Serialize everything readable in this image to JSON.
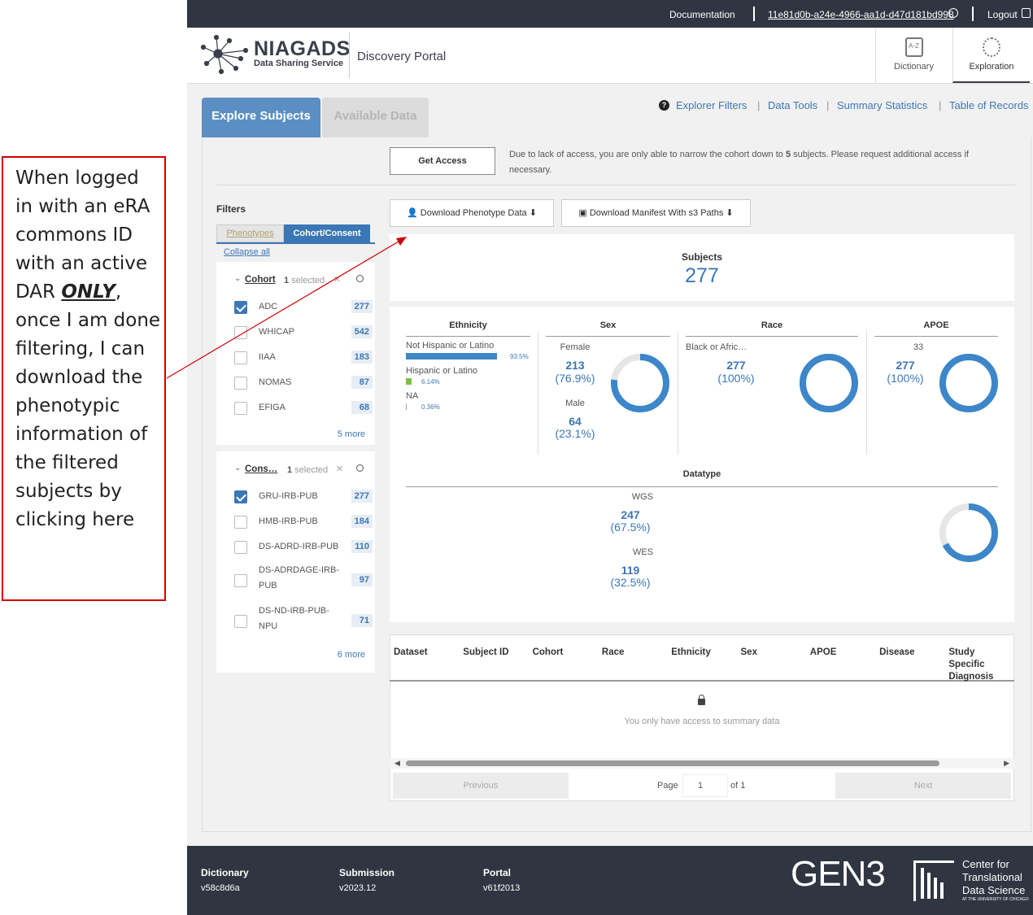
{
  "annotation": {
    "text_parts": [
      "When logged in with an eRA commons ID with an active DAR ",
      "ONLY",
      ", once I am done filtering, I can download the phenotypic information of the filtered subjects by clicking here"
    ]
  },
  "topbar": {
    "documentation": "Documentation",
    "user_id": "11e81d0b-a24e-4966-aa1d-d47d181bd998",
    "logout": "Logout"
  },
  "header": {
    "logo_title": "NIAGADS",
    "logo_subtitle": "Data Sharing Service",
    "portal_name": "Discovery Portal",
    "nav": [
      {
        "label": "Dictionary",
        "icon": "dictionary-icon"
      },
      {
        "label": "Exploration",
        "icon": "exploration-icon"
      }
    ]
  },
  "tabs": {
    "explore": "Explore Subjects",
    "available": "Available Data"
  },
  "links": {
    "explorer_filters": "Explorer Filters",
    "data_tools": "Data Tools",
    "summary_statistics": "Summary Statistics",
    "table_of_records": "Table of Records",
    "sep": "|"
  },
  "access": {
    "button": "Get Access",
    "message_pre": "Due to lack of access, you are only able to narrow the cohort down to ",
    "message_num": "5",
    "message_post": " subjects. Please request additional access if necessary."
  },
  "downloads": {
    "phenotype": "Download Phenotype Data",
    "manifest": "Download Manifest With s3 Paths"
  },
  "filters": {
    "title": "Filters",
    "tab_phenotypes": "Phenotypes",
    "tab_cohort": "Cohort/Consent",
    "collapse_all": "Collapse all",
    "cohort": {
      "label": "Cohort",
      "selected": "1",
      "selected_suffix": "selected",
      "more": "5 more",
      "items": [
        {
          "label": "ADC",
          "count": "277",
          "checked": true
        },
        {
          "label": "WHICAP",
          "count": "542",
          "checked": false
        },
        {
          "label": "IIAA",
          "count": "183",
          "checked": false
        },
        {
          "label": "NOMAS",
          "count": "87",
          "checked": false
        },
        {
          "label": "EFIGA",
          "count": "68",
          "checked": false
        }
      ]
    },
    "consent": {
      "label": "Cons…",
      "selected": "1",
      "selected_suffix": "selected",
      "more": "6 more",
      "items": [
        {
          "label": "GRU-IRB-PUB",
          "count": "277",
          "checked": true
        },
        {
          "label": "HMB-IRB-PUB",
          "count": "184",
          "checked": false
        },
        {
          "label": "DS-ADRD-IRB-PUB",
          "count": "110",
          "checked": false
        },
        {
          "label": "DS-ADRDAGE-IRB-",
          "label2": "PUB",
          "count": "97",
          "checked": false
        },
        {
          "label": "DS-ND-IRB-PUB-",
          "label2": "NPU",
          "count": "71",
          "checked": false
        }
      ]
    }
  },
  "subjects": {
    "label": "Subjects",
    "count": "277"
  },
  "ethnicity": {
    "title": "Ethnicity",
    "items": [
      {
        "label": "Not Hispanic or Latino",
        "pct": "93.5%",
        "fraction": 0.935,
        "color": "#3c86c9"
      },
      {
        "label": "Hispanic or Latino",
        "pct": "6.14%",
        "fraction": 0.0614,
        "color": "#7ac143"
      },
      {
        "label": "NA",
        "pct": "0.36%",
        "fraction": 0.0036,
        "color": "#aaaaaa"
      }
    ]
  },
  "sex": {
    "title": "Sex",
    "items": [
      {
        "label": "Female",
        "count": "213",
        "pct": "(76.9%)"
      },
      {
        "label": "Male",
        "count": "64",
        "pct": "(23.1%)"
      }
    ],
    "fraction": 0.769
  },
  "race": {
    "title": "Race",
    "items": [
      {
        "label": "Black or Afric…",
        "count": "277",
        "pct": "(100%)"
      }
    ],
    "fraction": 1.0
  },
  "apoe": {
    "title": "APOE",
    "items": [
      {
        "label": "33",
        "count": "277",
        "pct": "(100%)"
      }
    ],
    "fraction": 1.0
  },
  "datatype": {
    "title": "Datatype",
    "items": [
      {
        "label": "WGS",
        "count": "247",
        "pct": "(67.5%)"
      },
      {
        "label": "WES",
        "count": "119",
        "pct": "(32.5%)"
      }
    ],
    "fraction": 0.675
  },
  "table": {
    "columns": [
      "Dataset",
      "Subject ID",
      "Cohort",
      "Race",
      "Ethnicity",
      "Sex",
      "APOE",
      "Disease",
      "Study Specific Diagnosis"
    ],
    "empty_message": "You only have access to summary data",
    "scroll_fraction": 0.83
  },
  "pagination": {
    "previous": "Previous",
    "page_label": "Page",
    "page": "1",
    "of_label": "of 1",
    "next": "Next"
  },
  "footer": {
    "items": [
      {
        "key": "Dictionary",
        "value": "v58c8d6a"
      },
      {
        "key": "Submission",
        "value": "v2023.12"
      },
      {
        "key": "Portal",
        "value": "v61f2013"
      }
    ],
    "gen3": "GEN3",
    "ctds": [
      "Center for",
      "Translational",
      "Data Science"
    ],
    "ctds_sub": "AT THE UNIVERSITY OF CHICAGO"
  },
  "colors": {
    "accent": "#3c77b5",
    "donut": "#3c86c9",
    "donut_track": "#e6e6e6",
    "topbar": "#2f3541",
    "annotation_border": "#d10000"
  }
}
